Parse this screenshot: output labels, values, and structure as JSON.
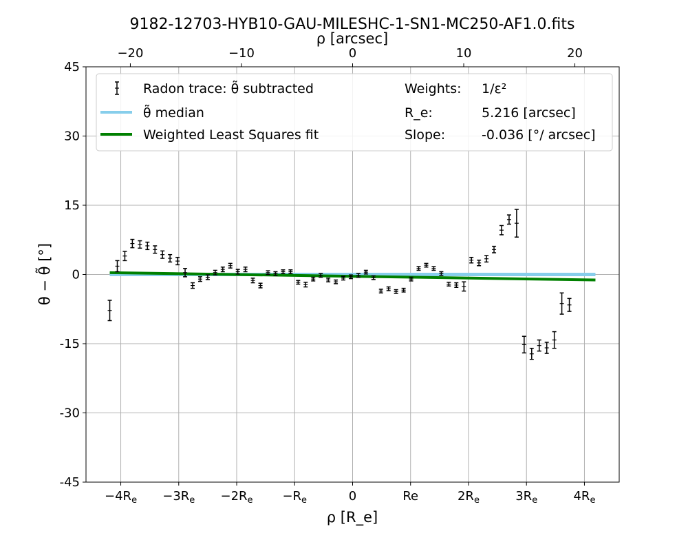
{
  "chart_data": {
    "type": "scatter",
    "title": "9182-12703-HYB10-GAU-MILESHC-1-SN1-MC250-AF1.0.fits",
    "top_xlabel": "ρ [arcsec]",
    "xlabel": "ρ [R_e]",
    "ylabel": "θ − θ̃ [°]",
    "xlim": [
      -4.6,
      4.6
    ],
    "ylim": [
      -45,
      45
    ],
    "top_xlim": [
      -23.99,
      23.99
    ],
    "grid": true,
    "y_ticks": [
      {
        "v": -45,
        "label": "-45"
      },
      {
        "v": -30,
        "label": "-30"
      },
      {
        "v": -15,
        "label": "-15"
      },
      {
        "v": 0,
        "label": "0"
      },
      {
        "v": 15,
        "label": "15"
      },
      {
        "v": 30,
        "label": "30"
      },
      {
        "v": 45,
        "label": "45"
      }
    ],
    "x_ticks": [
      {
        "v": -4,
        "label": "−4R",
        "sub": "e"
      },
      {
        "v": -3,
        "label": "−3R",
        "sub": "e"
      },
      {
        "v": -2,
        "label": "−2R",
        "sub": "e"
      },
      {
        "v": -1,
        "label": "−R",
        "sub": "e"
      },
      {
        "v": 0,
        "label": "0",
        "sub": ""
      },
      {
        "v": 1,
        "label": "Re",
        "sub": ""
      },
      {
        "v": 2,
        "label": "2R",
        "sub": "e"
      },
      {
        "v": 3,
        "label": "3R",
        "sub": "e"
      },
      {
        "v": 4,
        "label": "4R",
        "sub": "e"
      }
    ],
    "top_ticks": [
      {
        "v": -20,
        "label": "−20"
      },
      {
        "v": -10,
        "label": "−10"
      },
      {
        "v": 0,
        "label": "0"
      },
      {
        "v": 10,
        "label": "10"
      },
      {
        "v": 20,
        "label": "20"
      }
    ],
    "legend": {
      "placement": "top",
      "entries": [
        {
          "label": "Radon trace: θ̃ subtracted",
          "kind": "errorbar",
          "color": "#000000"
        },
        {
          "label": "θ̃ median",
          "kind": "line",
          "color": "#87ceeb"
        },
        {
          "label": "Weighted Least Squares fit",
          "kind": "line",
          "color": "#008000"
        }
      ],
      "info": [
        {
          "key": "Weights:",
          "value": "1/ε²"
        },
        {
          "key": "R_e:",
          "value": "5.216 [arcsec]"
        },
        {
          "key": "Slope:",
          "value": "-0.036 [°/ arcsec]"
        }
      ]
    },
    "series": [
      {
        "name": "Radon trace: θ̃ subtracted",
        "color": "#000000",
        "points": [
          [
            -4.19,
            -7.8,
            2.2
          ],
          [
            -4.06,
            1.8,
            1.2
          ],
          [
            -3.93,
            4.0,
            1.0
          ],
          [
            -3.8,
            6.7,
            0.9
          ],
          [
            -3.67,
            6.5,
            0.8
          ],
          [
            -3.54,
            6.2,
            0.8
          ],
          [
            -3.41,
            5.4,
            0.8
          ],
          [
            -3.28,
            4.3,
            0.8
          ],
          [
            -3.15,
            3.5,
            0.8
          ],
          [
            -3.02,
            2.9,
            0.8
          ],
          [
            -2.89,
            0.4,
            0.9
          ],
          [
            -2.76,
            -2.4,
            0.6
          ],
          [
            -2.63,
            -1.0,
            0.5
          ],
          [
            -2.5,
            -0.6,
            0.5
          ],
          [
            -2.37,
            0.4,
            0.5
          ],
          [
            -2.24,
            1.1,
            0.5
          ],
          [
            -2.11,
            1.9,
            0.5
          ],
          [
            -1.98,
            0.6,
            0.5
          ],
          [
            -1.85,
            1.1,
            0.5
          ],
          [
            -1.72,
            -1.3,
            0.5
          ],
          [
            -1.59,
            -2.4,
            0.5
          ],
          [
            -1.46,
            0.4,
            0.4
          ],
          [
            -1.33,
            0.2,
            0.4
          ],
          [
            -1.2,
            0.6,
            0.4
          ],
          [
            -1.07,
            0.6,
            0.4
          ],
          [
            -0.94,
            -1.7,
            0.4
          ],
          [
            -0.81,
            -2.2,
            0.5
          ],
          [
            -0.68,
            -1.0,
            0.4
          ],
          [
            -0.55,
            -0.2,
            0.4
          ],
          [
            -0.42,
            -1.2,
            0.4
          ],
          [
            -0.29,
            -1.6,
            0.4
          ],
          [
            -0.16,
            -0.8,
            0.4
          ],
          [
            -0.03,
            -0.5,
            0.4
          ],
          [
            0.1,
            -0.2,
            0.4
          ],
          [
            0.23,
            0.5,
            0.4
          ],
          [
            0.36,
            -0.7,
            0.4
          ],
          [
            0.49,
            -3.6,
            0.4
          ],
          [
            0.62,
            -3.1,
            0.4
          ],
          [
            0.75,
            -3.7,
            0.4
          ],
          [
            0.88,
            -3.4,
            0.4
          ],
          [
            1.01,
            -1.0,
            0.4
          ],
          [
            1.14,
            1.3,
            0.4
          ],
          [
            1.27,
            2.0,
            0.4
          ],
          [
            1.4,
            1.3,
            0.4
          ],
          [
            1.53,
            0.2,
            0.4
          ],
          [
            1.66,
            -2.1,
            0.4
          ],
          [
            1.79,
            -2.3,
            0.5
          ],
          [
            1.92,
            -2.6,
            1.0
          ],
          [
            2.05,
            3.1,
            0.6
          ],
          [
            2.18,
            2.5,
            0.6
          ],
          [
            2.31,
            3.4,
            0.7
          ],
          [
            2.44,
            5.4,
            0.7
          ],
          [
            2.57,
            9.6,
            1.0
          ],
          [
            2.7,
            11.9,
            1.0
          ],
          [
            2.83,
            11.1,
            3.0
          ],
          [
            2.96,
            -15.2,
            1.8
          ],
          [
            3.09,
            -17.2,
            1.2
          ],
          [
            3.22,
            -15.4,
            1.2
          ],
          [
            3.35,
            -15.9,
            1.2
          ],
          [
            3.48,
            -14.2,
            1.8
          ],
          [
            3.61,
            -6.3,
            2.3
          ],
          [
            3.74,
            -6.6,
            1.4
          ]
        ]
      },
      {
        "name": "θ̃ median",
        "color": "#87ceeb",
        "points": [
          [
            -4.19,
            0.0
          ],
          [
            4.19,
            0.0
          ]
        ]
      },
      {
        "name": "Weighted Least Squares fit",
        "color": "#008000",
        "points": [
          [
            -4.19,
            0.4
          ],
          [
            4.19,
            -1.2
          ]
        ]
      }
    ]
  }
}
